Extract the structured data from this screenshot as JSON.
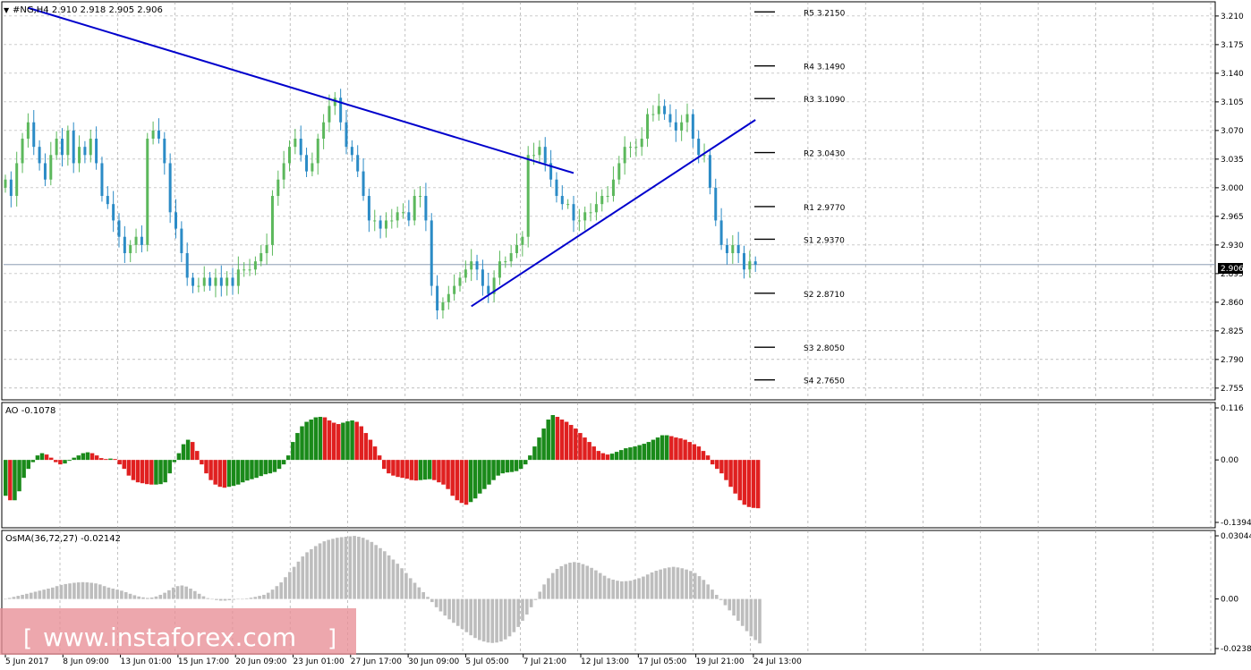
{
  "colors": {
    "up_candle": "#5cb85c",
    "down_candle": "#2b8bc6",
    "trendline": "#0000cc",
    "ao_up": "#1a8a1a",
    "ao_down": "#e02020",
    "osma": "#bdbdbd",
    "grid": "#9a9a9a",
    "price_line": "#7a8ea8",
    "watermark_bg": "#e88e96"
  },
  "header": {
    "price_title": "#NG,H4  2.910 2.918 2.905 2.906",
    "ao_title": "AO -0.1078",
    "osma_title": "OsMA(36,72,27) -0.02142"
  },
  "current_price_label": "2.906",
  "watermark": "www.instaforex.com",
  "chart_data": [
    {
      "type": "candlestick",
      "title": "#NG,H4  2.910 2.918 2.905 2.906",
      "ylim": [
        2.745,
        3.223
      ],
      "y_ticks": [
        "3.210",
        "3.175",
        "3.140",
        "3.105",
        "3.070",
        "3.035",
        "3.000",
        "2.965",
        "2.930",
        "2.895",
        "2.860",
        "2.825",
        "2.790",
        "2.755"
      ],
      "x_ticks": [
        "5 Jun 2017",
        "8 Jun 09:00",
        "13 Jun 01:00",
        "15 Jun 17:00",
        "20 Jun 09:00",
        "23 Jun 01:00",
        "27 Jun 17:00",
        "30 Jun 09:00",
        "5 Jul 05:00",
        "7 Jul 21:00",
        "12 Jul 13:00",
        "17 Jul 05:00",
        "19 Jul 21:00",
        "24 Jul 13:00"
      ],
      "last_price": 2.906,
      "close_path": [
        3.01,
        2.99,
        3.03,
        3.06,
        3.08,
        3.05,
        3.03,
        3.01,
        3.04,
        3.06,
        3.04,
        3.07,
        3.03,
        3.05,
        3.04,
        3.06,
        3.03,
        2.99,
        2.98,
        2.96,
        2.94,
        2.92,
        2.93,
        2.94,
        2.93,
        3.06,
        3.07,
        3.06,
        3.03,
        2.97,
        2.95,
        2.92,
        2.89,
        2.88,
        2.88,
        2.89,
        2.88,
        2.89,
        2.88,
        2.89,
        2.88,
        2.9,
        2.9,
        2.9,
        2.91,
        2.92,
        2.93,
        2.99,
        3.01,
        3.03,
        3.05,
        3.06,
        3.04,
        3.02,
        3.03,
        3.06,
        3.08,
        3.1,
        3.11,
        3.08,
        3.05,
        3.04,
        3.02,
        2.99,
        2.96,
        2.96,
        2.95,
        2.96,
        2.96,
        2.97,
        2.97,
        2.96,
        2.99,
        2.99,
        2.96,
        2.88,
        2.85,
        2.86,
        2.87,
        2.88,
        2.89,
        2.9,
        2.91,
        2.9,
        2.88,
        2.87,
        2.89,
        2.91,
        2.91,
        2.92,
        2.93,
        2.94,
        3.04,
        3.04,
        3.05,
        3.03,
        3.01,
        2.99,
        2.98,
        2.98,
        2.96,
        2.96,
        2.97,
        2.97,
        2.98,
        2.99,
        2.99,
        3.01,
        3.03,
        3.05,
        3.05,
        3.05,
        3.06,
        3.09,
        3.09,
        3.1,
        3.09,
        3.08,
        3.07,
        3.08,
        3.09,
        3.06,
        3.04,
        3.04,
        3.0,
        2.96,
        2.93,
        2.92,
        2.93,
        2.92,
        2.9,
        2.91,
        2.906
      ],
      "levels": [
        {
          "label": "R5 3.2150",
          "value": 3.215
        },
        {
          "label": "R4 3.1490",
          "value": 3.149
        },
        {
          "label": "R3 3.1090",
          "value": 3.109
        },
        {
          "label": "R2 3.0430",
          "value": 3.043
        },
        {
          "label": "R1 2.9770",
          "value": 2.977
        },
        {
          "label": "S1 2.9370",
          "value": 2.937
        },
        {
          "label": "S2 2.8710",
          "value": 2.871
        },
        {
          "label": "S3 2.8050",
          "value": 2.805
        },
        {
          "label": "S4 2.7650",
          "value": 2.765
        }
      ],
      "trendlines": [
        {
          "from": [
            4,
            3.22
          ],
          "to": [
            100,
            3.018
          ]
        },
        {
          "from": [
            82,
            2.855
          ],
          "to": [
            132,
            3.083
          ]
        }
      ]
    },
    {
      "type": "bar",
      "title": "AO -0.1078",
      "ylim": [
        -0.1394,
        0.116
      ],
      "y_ticks": [
        "0.116",
        "0.00",
        "-0.1394"
      ],
      "values": [
        -0.08,
        -0.09,
        -0.09,
        -0.07,
        -0.04,
        -0.02,
        -0.005,
        0.01,
        0.015,
        0.012,
        0.005,
        -0.005,
        -0.01,
        -0.008,
        -0.002,
        0.005,
        0.01,
        0.015,
        0.017,
        0.015,
        0.01,
        0.004,
        0.002,
        0.003,
        0.002,
        -0.01,
        -0.02,
        -0.035,
        -0.045,
        -0.05,
        -0.052,
        -0.054,
        -0.055,
        -0.055,
        -0.054,
        -0.05,
        -0.03,
        -0.005,
        0.015,
        0.035,
        0.045,
        0.04,
        0.02,
        -0.01,
        -0.03,
        -0.045,
        -0.055,
        -0.06,
        -0.062,
        -0.06,
        -0.058,
        -0.055,
        -0.05,
        -0.046,
        -0.043,
        -0.04,
        -0.036,
        -0.032,
        -0.03,
        -0.027,
        -0.02,
        -0.01,
        0.01,
        0.04,
        0.06,
        0.075,
        0.085,
        0.09,
        0.095,
        0.096,
        0.095,
        0.088,
        0.083,
        0.08,
        0.083,
        0.086,
        0.088,
        0.085,
        0.075,
        0.06,
        0.045,
        0.03,
        0.01,
        -0.02,
        -0.03,
        -0.035,
        -0.038,
        -0.04,
        -0.042,
        -0.045,
        -0.046,
        -0.045,
        -0.044,
        -0.043,
        -0.045,
        -0.05,
        -0.055,
        -0.065,
        -0.08,
        -0.09,
        -0.096,
        -0.1,
        -0.094,
        -0.086,
        -0.075,
        -0.065,
        -0.055,
        -0.045,
        -0.035,
        -0.03,
        -0.028,
        -0.027,
        -0.025,
        -0.02,
        -0.01,
        0.01,
        0.03,
        0.05,
        0.07,
        0.09,
        0.1,
        0.096,
        0.09,
        0.085,
        0.078,
        0.07,
        0.06,
        0.05,
        0.04,
        0.03,
        0.02,
        0.015,
        0.012,
        0.014,
        0.018,
        0.022,
        0.026,
        0.028,
        0.03,
        0.033,
        0.036,
        0.04,
        0.045,
        0.05,
        0.055,
        0.055,
        0.053,
        0.05,
        0.048,
        0.045,
        0.04,
        0.035,
        0.03,
        0.02,
        0.01,
        -0.01,
        -0.02,
        -0.03,
        -0.045,
        -0.06,
        -0.075,
        -0.09,
        -0.1,
        -0.105,
        -0.107,
        -0.1078
      ]
    },
    {
      "type": "bar",
      "title": "OsMA(36,72,27) -0.02142",
      "ylim": [
        -0.02389,
        0.03044
      ],
      "y_ticks": [
        "0.03044",
        "0.00",
        "-0.02389"
      ],
      "values": [
        0,
        0.0005,
        0.001,
        0.0015,
        0.002,
        0.0025,
        0.003,
        0.0035,
        0.004,
        0.0045,
        0.005,
        0.0055,
        0.0062,
        0.0068,
        0.0072,
        0.0075,
        0.0078,
        0.008,
        0.0081,
        0.008,
        0.0078,
        0.0075,
        0.007,
        0.0062,
        0.0055,
        0.005,
        0.0045,
        0.004,
        0.0033,
        0.0025,
        0.0018,
        0.0012,
        0.0008,
        0.0005,
        0.0007,
        0.0012,
        0.002,
        0.003,
        0.0042,
        0.0055,
        0.0062,
        0.0065,
        0.006,
        0.005,
        0.0038,
        0.0025,
        0.0013,
        0.0004,
        0,
        -0.0005,
        -0.0008,
        -0.0008,
        -0.0006,
        -0.0004,
        -0.0002,
        0,
        0.0003,
        0.0006,
        0.001,
        0.0015,
        0.002,
        0.003,
        0.0045,
        0.0062,
        0.008,
        0.0105,
        0.013,
        0.0155,
        0.018,
        0.0205,
        0.0225,
        0.024,
        0.0255,
        0.0268,
        0.0278,
        0.0285,
        0.029,
        0.0295,
        0.0298,
        0.03,
        0.0302,
        0.0304,
        0.03,
        0.0295,
        0.0285,
        0.0275,
        0.026,
        0.0245,
        0.023,
        0.021,
        0.019,
        0.017,
        0.0148,
        0.0125,
        0.01,
        0.0078,
        0.0056,
        0.0033,
        0.001,
        -0.0015,
        -0.004,
        -0.006,
        -0.008,
        -0.0098,
        -0.0115,
        -0.013,
        -0.0145,
        -0.016,
        -0.0175,
        -0.0188,
        -0.0198,
        -0.0205,
        -0.021,
        -0.0212,
        -0.021,
        -0.0205,
        -0.0195,
        -0.018,
        -0.016,
        -0.0135,
        -0.0105,
        -0.0075,
        -0.004,
        -0.0005,
        0.0035,
        0.007,
        0.01,
        0.0125,
        0.0145,
        0.0158,
        0.0168,
        0.0175,
        0.0178,
        0.0175,
        0.0168,
        0.016,
        0.015,
        0.0138,
        0.0125,
        0.0112,
        0.01,
        0.0093,
        0.0088,
        0.0085,
        0.0086,
        0.0088,
        0.0093,
        0.01,
        0.0108,
        0.0118,
        0.0128,
        0.0136,
        0.0142,
        0.0148,
        0.0152,
        0.0155,
        0.0152,
        0.0148,
        0.0142,
        0.0135,
        0.0125,
        0.011,
        0.0092,
        0.007,
        0.0045,
        0.002,
        -0.0005,
        -0.003,
        -0.0055,
        -0.008,
        -0.0105,
        -0.013,
        -0.0155,
        -0.018,
        -0.0198,
        -0.0214
      ]
    }
  ]
}
